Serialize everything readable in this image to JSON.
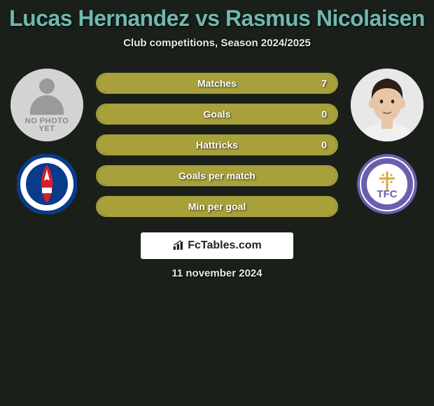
{
  "title": "Lucas Hernandez vs Rasmus Nicolaisen",
  "subtitle": "Club competitions, Season 2024/2025",
  "date": "11 november 2024",
  "colors": {
    "title_color": "#6fb8b0",
    "text_color": "#e8e8e8",
    "background": "#1a1f1a",
    "bar_border": "#a8a03a",
    "bar_fill": "#a8a03a",
    "brand_bg": "#ffffff",
    "brand_text": "#222222"
  },
  "left": {
    "player_photo": "placeholder",
    "placeholder_lines": [
      "NO PHOTO",
      "YET"
    ],
    "club": {
      "name": "psg",
      "bg": "#ffffff",
      "ring": "#0a3b8a",
      "center": "#d81e2a",
      "accent": "#ffffff"
    }
  },
  "right": {
    "player_photo": "face",
    "face": {
      "skin": "#e7c6a8",
      "hair": "#2b1f17",
      "shirt": "#f0f0f0"
    },
    "club": {
      "name": "tfc",
      "bg": "#ffffff",
      "ring": "#6a5fae",
      "text": "#6a5fae",
      "cross": "#d8a83a",
      "label": "TFC"
    }
  },
  "stats": [
    {
      "label": "Matches",
      "right_value": "7",
      "fill_pct": 100
    },
    {
      "label": "Goals",
      "right_value": "0",
      "fill_pct": 100
    },
    {
      "label": "Hattricks",
      "right_value": "0",
      "fill_pct": 100
    },
    {
      "label": "Goals per match",
      "right_value": "",
      "fill_pct": 100
    },
    {
      "label": "Min per goal",
      "right_value": "",
      "fill_pct": 100
    }
  ],
  "brand": {
    "text": "FcTables.com"
  }
}
